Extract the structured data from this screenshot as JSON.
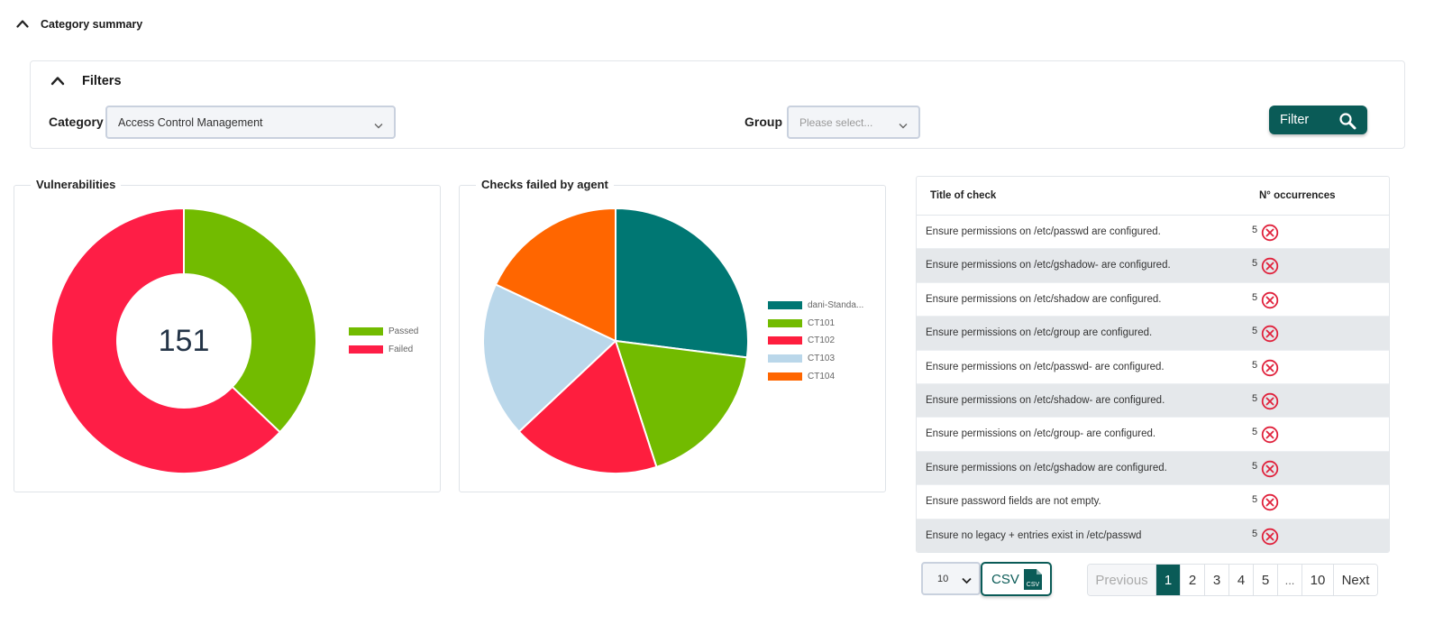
{
  "section": {
    "title": "Category summary"
  },
  "filters": {
    "title": "Filters",
    "category_label": "Category",
    "category_value": "Access Control Management",
    "group_label": "Group",
    "group_placeholder": "Please select...",
    "filter_button": "Filter"
  },
  "vulnerabilities": {
    "title": "Vulnerabilities",
    "center_value": "151",
    "chart_data": {
      "type": "pie",
      "categories": [
        "Passed",
        "Failed"
      ],
      "values": [
        56,
        95
      ],
      "colors": [
        "#72bb00",
        "#fe1e46"
      ],
      "legend": "right",
      "donut": true
    }
  },
  "checks_by_agent": {
    "title": "Checks failed by agent",
    "chart_data": {
      "type": "pie",
      "categories": [
        "dani-Standa...",
        "CT101",
        "CT102",
        "CT103",
        "CT104"
      ],
      "values": [
        27,
        18,
        18,
        19,
        18
      ],
      "colors": [
        "#007773",
        "#72bb00",
        "#fe1e3e",
        "#bad7ea",
        "#ff6600"
      ],
      "legend": "right"
    }
  },
  "table": {
    "col_title": "Title of check",
    "col_count": "N° occurrences",
    "rows": [
      {
        "title": "Ensure permissions on /etc/passwd are configured.",
        "count": "5"
      },
      {
        "title": "Ensure permissions on /etc/gshadow- are configured.",
        "count": "5"
      },
      {
        "title": "Ensure permissions on /etc/shadow are configured.",
        "count": "5"
      },
      {
        "title": "Ensure permissions on /etc/group are configured.",
        "count": "5"
      },
      {
        "title": "Ensure permissions on /etc/passwd- are configured.",
        "count": "5"
      },
      {
        "title": "Ensure permissions on /etc/shadow- are configured.",
        "count": "5"
      },
      {
        "title": "Ensure permissions on /etc/group- are configured.",
        "count": "5"
      },
      {
        "title": "Ensure permissions on /etc/gshadow are configured.",
        "count": "5"
      },
      {
        "title": "Ensure password fields are not empty.",
        "count": "5"
      },
      {
        "title": "Ensure no legacy + entries exist in /etc/passwd",
        "count": "5"
      }
    ]
  },
  "pagination": {
    "page_size": "10",
    "csv_label": "CSV",
    "csv_icon_text": "CSV",
    "previous": "Previous",
    "next": "Next",
    "pages": [
      "1",
      "2",
      "3",
      "4",
      "5",
      "...",
      "10"
    ],
    "active_page": "1"
  },
  "colors": {
    "accent": "#0a5b57",
    "fail_icon": "#e0223c"
  }
}
